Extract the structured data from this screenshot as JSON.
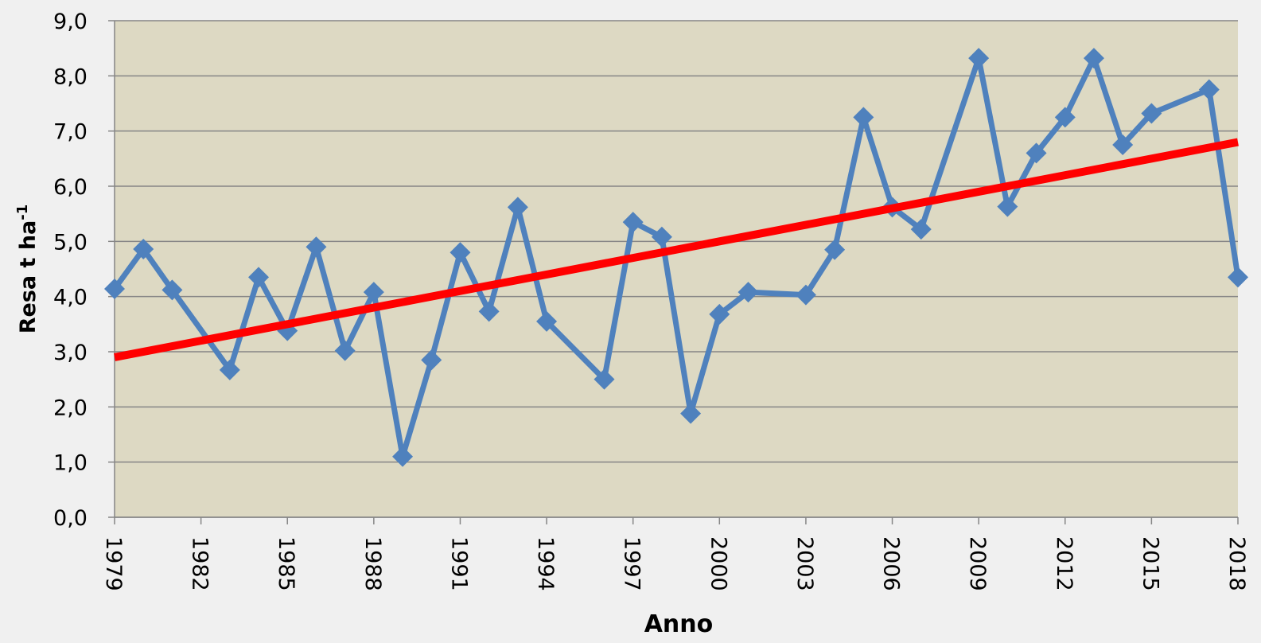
{
  "chart_data": {
    "type": "line",
    "xlabel": "Anno",
    "ylabel": "Resa t ha",
    "ylabel_superscript": "-1",
    "x": [
      1979,
      1980,
      1981,
      1983,
      1984,
      1985,
      1986,
      1987,
      1988,
      1989,
      1990,
      1991,
      1992,
      1993,
      1994,
      1996,
      1997,
      1998,
      1999,
      2000,
      2001,
      2003,
      2004,
      2005,
      2006,
      2007,
      2009,
      2010,
      2011,
      2012,
      2013,
      2014,
      2015,
      2017,
      2018
    ],
    "values": [
      4.14,
      4.86,
      4.12,
      2.67,
      4.35,
      3.38,
      4.9,
      3.02,
      4.08,
      1.1,
      2.85,
      4.8,
      3.73,
      5.62,
      3.55,
      2.5,
      5.35,
      5.08,
      1.88,
      3.68,
      4.08,
      4.03,
      4.85,
      7.25,
      5.62,
      5.22,
      8.32,
      5.63,
      6.6,
      7.25,
      8.32,
      6.75,
      7.32,
      7.75,
      4.35
    ],
    "color": "#4f81bd",
    "trendline": {
      "x": [
        1979,
        2018
      ],
      "values": [
        2.9,
        6.8
      ],
      "color": "#ff0000"
    },
    "xlim": [
      1979,
      2018
    ],
    "xticks": [
      1979,
      1982,
      1985,
      1988,
      1991,
      1994,
      1997,
      2000,
      2003,
      2006,
      2009,
      2012,
      2015,
      2018
    ],
    "ylim": [
      0,
      9
    ],
    "yticks": [
      {
        "value": 0,
        "label": "0,0"
      },
      {
        "value": 1,
        "label": "1,0"
      },
      {
        "value": 2,
        "label": "2,0"
      },
      {
        "value": 3,
        "label": "3,0"
      },
      {
        "value": 4,
        "label": "4,0"
      },
      {
        "value": 5,
        "label": "5,0"
      },
      {
        "value": 6,
        "label": "6,0"
      },
      {
        "value": 7,
        "label": "7,0"
      },
      {
        "value": 8,
        "label": "8,0"
      },
      {
        "value": 9,
        "label": "9,0"
      }
    ],
    "grid": true
  }
}
